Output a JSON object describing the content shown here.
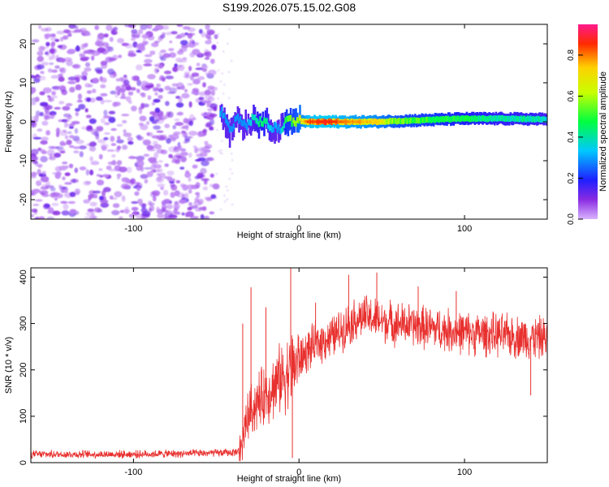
{
  "title": "S199.2026.075.15.02.G08",
  "chart_data": [
    {
      "type": "heatmap",
      "xlabel": "Height of straight line (km)",
      "ylabel": "Frequency (Hz)",
      "xlim": [
        -162,
        150
      ],
      "ylim": [
        -25,
        25
      ],
      "x_ticks": [
        -100,
        0,
        100
      ],
      "y_ticks": [
        -20,
        -10,
        0,
        10,
        20
      ],
      "colorbar": {
        "label": "Normalized spectral amplitude",
        "range": [
          0.0,
          0.95
        ],
        "ticks": [
          0.0,
          0.2,
          0.4,
          0.6,
          0.8
        ]
      },
      "noise_region": {
        "x_from": -162,
        "x_to": -50,
        "description_value": "scattered low amplitude 0.1-0.35"
      },
      "ridge": [
        {
          "x": -48,
          "f": 3.0,
          "amp": 0.35
        },
        {
          "x": -45,
          "f": 0.5,
          "amp": 0.3
        },
        {
          "x": -42,
          "f": -2.5,
          "amp": 0.22
        },
        {
          "x": -38,
          "f": 1.5,
          "amp": 0.28
        },
        {
          "x": -34,
          "f": -1.0,
          "amp": 0.25
        },
        {
          "x": -28,
          "f": 0.5,
          "amp": 0.4
        },
        {
          "x": -22,
          "f": 0.0,
          "amp": 0.5
        },
        {
          "x": -17,
          "f": -1.5,
          "amp": 0.35
        },
        {
          "x": -12,
          "f": -2.0,
          "amp": 0.3
        },
        {
          "x": -8,
          "f": 0.5,
          "amp": 0.55
        },
        {
          "x": -3,
          "f": 0.3,
          "amp": 0.6
        },
        {
          "x": 5,
          "f": 0.0,
          "amp": 0.85
        },
        {
          "x": 15,
          "f": 0.0,
          "amp": 0.9
        },
        {
          "x": 30,
          "f": 0.0,
          "amp": 0.8
        },
        {
          "x": 45,
          "f": 0.0,
          "amp": 0.75
        },
        {
          "x": 60,
          "f": 0.2,
          "amp": 0.6
        },
        {
          "x": 80,
          "f": 0.5,
          "amp": 0.55
        },
        {
          "x": 100,
          "f": 0.8,
          "amp": 0.5
        },
        {
          "x": 120,
          "f": 0.8,
          "amp": 0.45
        },
        {
          "x": 140,
          "f": 0.7,
          "amp": 0.45
        },
        {
          "x": 150,
          "f": 0.6,
          "amp": 0.4
        }
      ]
    },
    {
      "type": "line",
      "xlabel": "Height of straight line (km)",
      "ylabel": "SNR (10 * v/v)",
      "xlim": [
        -162,
        150
      ],
      "ylim": [
        0,
        420
      ],
      "x_ticks": [
        -100,
        0,
        100
      ],
      "y_ticks": [
        0,
        100,
        200,
        300,
        400
      ],
      "color": "#e8302e",
      "series": [
        {
          "name": "SNR envelope",
          "x": [
            -162,
            -140,
            -120,
            -100,
            -80,
            -60,
            -40,
            -36,
            -34,
            -30,
            -25,
            -20,
            -15,
            -10,
            -5,
            0,
            5,
            10,
            15,
            20,
            25,
            30,
            35,
            40,
            45,
            50,
            60,
            70,
            80,
            90,
            100,
            110,
            120,
            130,
            140,
            150
          ],
          "values": [
            18,
            18,
            18,
            18,
            19,
            20,
            22,
            25,
            60,
            110,
            130,
            150,
            165,
            185,
            200,
            220,
            240,
            255,
            265,
            270,
            285,
            300,
            310,
            315,
            310,
            305,
            300,
            295,
            290,
            285,
            280,
            278,
            275,
            272,
            270,
            268
          ]
        }
      ],
      "spikes": [
        {
          "x": -34,
          "value": 300
        },
        {
          "x": -29,
          "value": 378
        },
        {
          "x": -20,
          "value": 335
        },
        {
          "x": -5,
          "value": 420
        },
        {
          "x": -4,
          "value": 10
        },
        {
          "x": 10,
          "value": 345
        },
        {
          "x": 30,
          "value": 405
        },
        {
          "x": 47,
          "value": 410
        },
        {
          "x": 72,
          "value": 380
        },
        {
          "x": 95,
          "value": 370
        },
        {
          "x": 140,
          "value": 145
        }
      ]
    }
  ]
}
